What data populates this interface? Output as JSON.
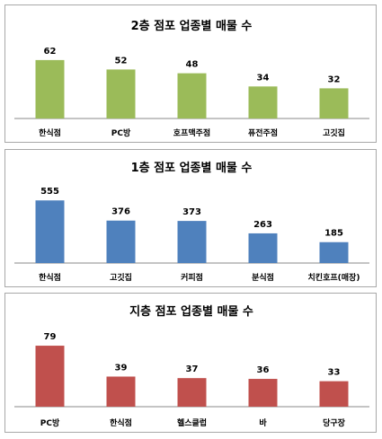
{
  "chart_data": [
    {
      "type": "bar",
      "title": "2층 점포 업종별 매물 수",
      "categories": [
        "한식점",
        "PC방",
        "호프맥주점",
        "퓨전주점",
        "고깃집"
      ],
      "values": [
        62,
        52,
        48,
        34,
        32
      ],
      "color": "#9bbb59",
      "ylim": [
        0,
        80
      ],
      "grid": false,
      "legend": "none"
    },
    {
      "type": "bar",
      "title": "1층 점포 업종별 매물 수",
      "categories": [
        "한식점",
        "고깃집",
        "커피점",
        "분식점",
        "치킨호프(매장)"
      ],
      "values": [
        555,
        376,
        373,
        263,
        185
      ],
      "color": "#4f81bd",
      "ylim": [
        0,
        700
      ],
      "grid": false,
      "legend": "none"
    },
    {
      "type": "bar",
      "title": "지층 점포 업종별 매물 수",
      "categories": [
        "PC방",
        "한식점",
        "헬스클럽",
        "바",
        "당구장"
      ],
      "values": [
        79,
        39,
        37,
        36,
        33
      ],
      "color": "#c0504d",
      "ylim": [
        0,
        100
      ],
      "grid": false,
      "legend": "none"
    }
  ]
}
